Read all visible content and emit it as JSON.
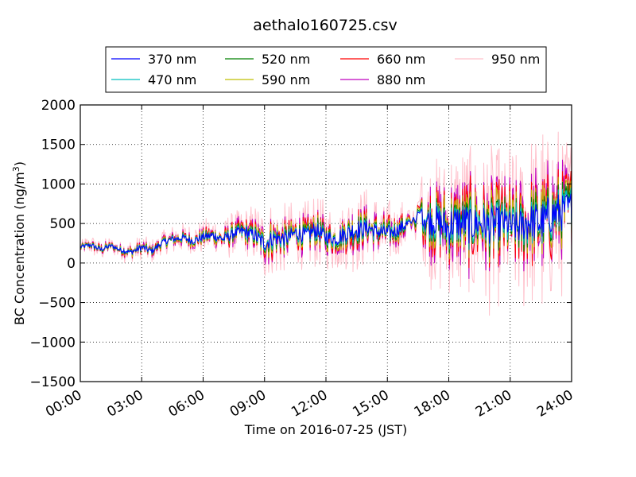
{
  "chart_data": {
    "type": "line",
    "title": "aethalo160725.csv",
    "xlabel": "Time on 2016-07-25 (JST)",
    "ylabel_main": "BC Concentration (ng/m",
    "ylabel_sup": "3",
    "ylabel_close": ")",
    "xlim_hours": [
      0,
      24
    ],
    "ylim": [
      -1500,
      2000
    ],
    "x_tick_hours": [
      0,
      3,
      6,
      9,
      12,
      15,
      18,
      21,
      24
    ],
    "x_tick_labels": [
      "00:00",
      "03:00",
      "06:00",
      "09:00",
      "12:00",
      "15:00",
      "18:00",
      "21:00",
      "24:00"
    ],
    "y_ticks": [
      -1500,
      -1000,
      -500,
      0,
      500,
      1000,
      1500,
      2000
    ],
    "y_tick_labels": [
      "−1500",
      "−1000",
      "−500",
      "0",
      "500",
      "1000",
      "1500",
      "2000"
    ],
    "grid": "dotted",
    "legend_position": "top, above plot",
    "series": [
      {
        "name": "370 nm",
        "color": "#0000ff",
        "amplitude": 0.35
      },
      {
        "name": "470 nm",
        "color": "#00bfbf",
        "amplitude": 0.45
      },
      {
        "name": "520 nm",
        "color": "#008000",
        "amplitude": 0.55
      },
      {
        "name": "590 nm",
        "color": "#bfbf00",
        "amplitude": 0.7
      },
      {
        "name": "660 nm",
        "color": "#ff0000",
        "amplitude": 0.85
      },
      {
        "name": "880 nm",
        "color": "#bf00bf",
        "amplitude": 1.0
      },
      {
        "name": "950 nm",
        "color": "#ffc0cb",
        "amplitude": 1.6
      }
    ],
    "x_hours": [
      0.0,
      0.5,
      1.0,
      1.5,
      2.0,
      2.5,
      3.0,
      3.5,
      4.0,
      4.5,
      5.0,
      5.5,
      6.0,
      6.5,
      7.0,
      7.5,
      8.0,
      8.5,
      9.0,
      9.5,
      10.0,
      10.5,
      11.0,
      11.5,
      12.0,
      12.5,
      13.0,
      13.5,
      14.0,
      14.5,
      15.0,
      15.5,
      16.0,
      16.5,
      17.0,
      17.5,
      18.0,
      18.5,
      19.0,
      19.5,
      20.0,
      20.5,
      21.0,
      21.5,
      22.0,
      22.5,
      23.0,
      23.5,
      24.0
    ],
    "base_values": [
      200,
      230,
      170,
      220,
      160,
      140,
      200,
      150,
      260,
      300,
      320,
      280,
      330,
      350,
      300,
      380,
      400,
      350,
      250,
      320,
      300,
      380,
      350,
      420,
      330,
      300,
      380,
      420,
      450,
      400,
      380,
      420,
      500,
      600,
      550,
      500,
      450,
      520,
      480,
      500,
      450,
      520,
      480,
      450,
      550,
      500,
      600,
      650,
      700
    ],
    "spike_amplitude": [
      60,
      70,
      80,
      70,
      80,
      90,
      100,
      90,
      100,
      110,
      120,
      110,
      130,
      150,
      160,
      170,
      200,
      220,
      280,
      300,
      260,
      240,
      260,
      280,
      250,
      230,
      300,
      320,
      280,
      260,
      250,
      220,
      200,
      220,
      500,
      550,
      600,
      620,
      650,
      600,
      620,
      600,
      580,
      620,
      650,
      700,
      680,
      650,
      600
    ]
  }
}
